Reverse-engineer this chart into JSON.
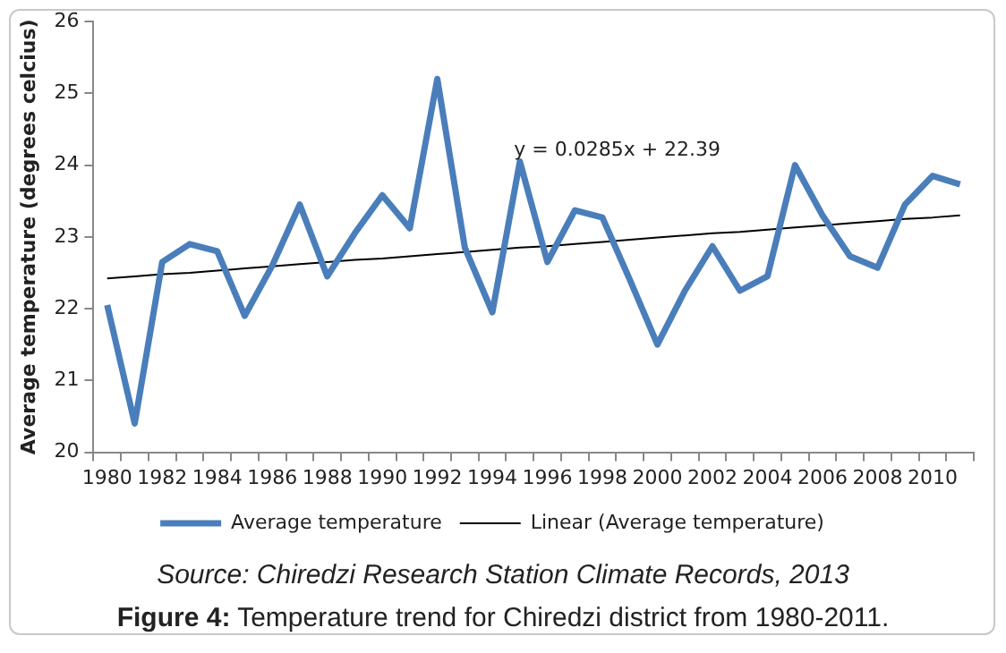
{
  "chart_data": {
    "type": "line",
    "ylabel": "Average temperature (degrees celcius)",
    "categories": [
      "1980",
      null,
      "1982",
      null,
      "1984",
      null,
      "1986",
      null,
      "1988",
      null,
      "1990",
      null,
      "1992",
      null,
      "1994",
      null,
      "1996",
      null,
      "1998",
      null,
      "2000",
      null,
      "2002",
      null,
      "2004",
      null,
      "2006",
      null,
      "2008",
      null,
      "2010",
      null
    ],
    "series": [
      {
        "name": "Average temperature",
        "color": "#4a7ebb",
        "values": [
          22.05,
          20.4,
          22.65,
          22.9,
          22.8,
          21.9,
          22.6,
          23.45,
          22.45,
          23.05,
          23.58,
          23.12,
          25.2,
          22.85,
          21.95,
          24.05,
          22.65,
          23.37,
          23.27,
          22.4,
          21.5,
          22.25,
          22.87,
          22.25,
          22.45,
          24.0,
          23.3,
          22.73,
          22.57,
          23.45,
          23.85,
          23.73
        ]
      },
      {
        "name": "Linear (Average temperature)",
        "color": "#000000",
        "values": [
          22.42,
          22.45,
          22.48,
          22.5,
          22.53,
          22.56,
          22.59,
          22.62,
          22.65,
          22.68,
          22.7,
          22.73,
          22.76,
          22.79,
          22.82,
          22.85,
          22.87,
          22.9,
          22.93,
          22.96,
          22.99,
          23.02,
          23.05,
          23.07,
          23.1,
          23.13,
          23.16,
          23.19,
          23.22,
          23.25,
          23.27,
          23.3
        ]
      }
    ],
    "ylim": [
      20,
      26
    ],
    "yticks": [
      20,
      21,
      22,
      23,
      24,
      25,
      26
    ],
    "grid": false,
    "legend": "bottom",
    "marker": "none",
    "annotations": [
      "y = 0.0285x + 22.39",
      "Source: Chiredzi Research Station Climate Records, 2013",
      "Figure 4: Temperature trend for Chiredzi district from 1980-2011."
    ]
  }
}
